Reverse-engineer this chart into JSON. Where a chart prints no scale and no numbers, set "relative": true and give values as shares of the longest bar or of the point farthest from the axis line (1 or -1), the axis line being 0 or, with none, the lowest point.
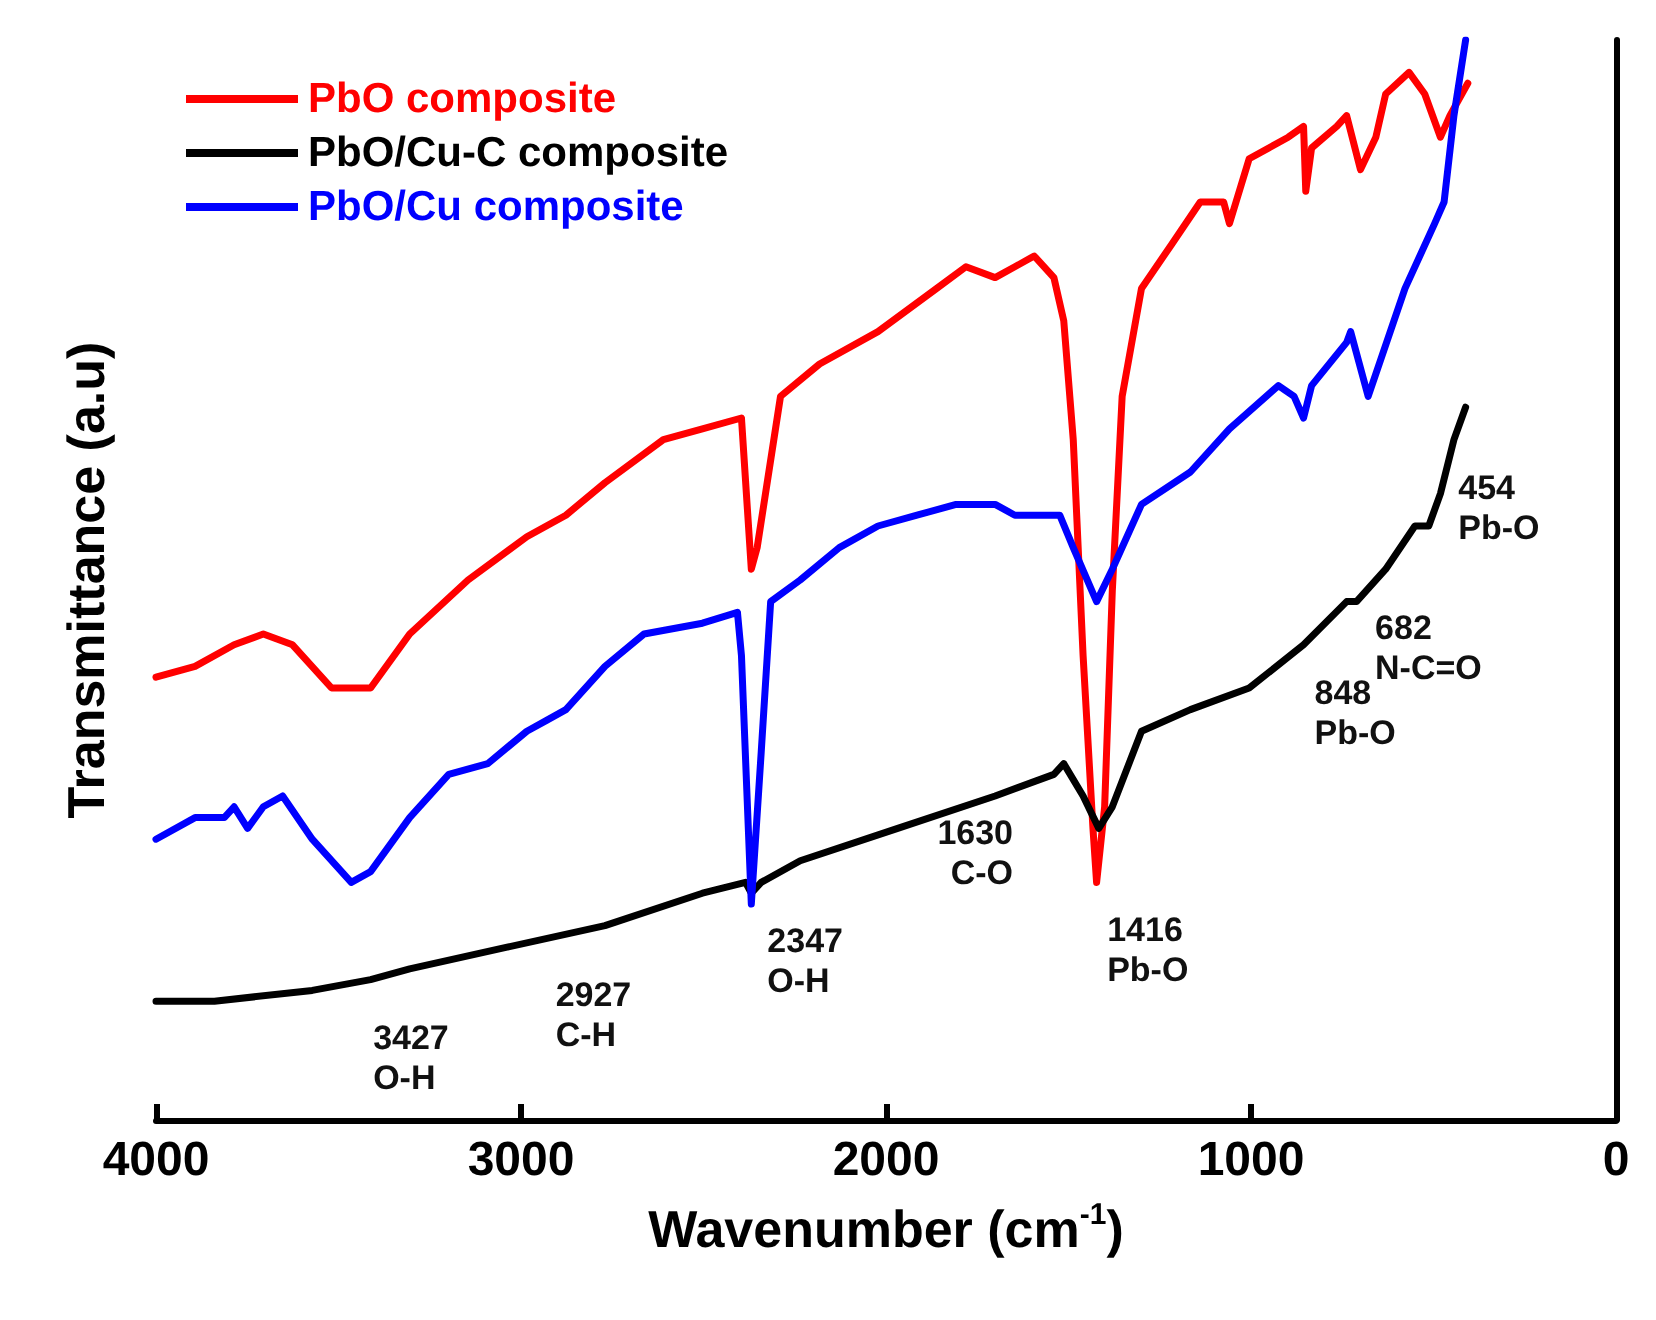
{
  "chart_data": {
    "type": "line",
    "relative": true,
    "xlabel": "Wavenumber (cm$^{-1}$)",
    "ylabel": "Transmittance (a.u)",
    "xlim": [
      4000,
      0
    ],
    "xticks": [
      4000,
      3000,
      2000,
      1000,
      0
    ],
    "legend": "top left",
    "grid": false,
    "marker": "none",
    "line_style": "solid",
    "series": [
      {
        "name": "PbO composite",
        "color": "#ff0000",
        "x": [
          4000,
          3893,
          3786,
          3706,
          3626,
          3519,
          3412,
          3305,
          3145,
          2984,
          2877,
          2770,
          2610,
          2503,
          2396,
          2369,
          2353,
          2289,
          2182,
          2022,
          1861,
          1781,
          1701,
          1647,
          1594,
          1540,
          1513,
          1487,
          1460,
          1433,
          1423,
          1401,
          1380,
          1353,
          1300,
          1219,
          1139,
          1075,
          1059,
          1005,
          898,
          856,
          850,
          834,
          765,
          738,
          700,
          658,
          631,
          567,
          524,
          481,
          455,
          406
        ],
        "values": [
          0.41,
          0.42,
          0.44,
          0.45,
          0.44,
          0.4,
          0.4,
          0.45,
          0.5,
          0.54,
          0.56,
          0.59,
          0.63,
          0.64,
          0.65,
          0.51,
          0.53,
          0.67,
          0.7,
          0.73,
          0.77,
          0.79,
          0.78,
          0.79,
          0.8,
          0.78,
          0.74,
          0.63,
          0.43,
          0.27,
          0.22,
          0.29,
          0.49,
          0.67,
          0.77,
          0.81,
          0.85,
          0.85,
          0.83,
          0.89,
          0.91,
          0.92,
          0.86,
          0.9,
          0.92,
          0.93,
          0.88,
          0.91,
          0.95,
          0.97,
          0.95,
          0.91,
          0.93,
          0.96
        ]
      },
      {
        "name": "PbO/Cu-C composite",
        "color": "#000000",
        "x": [
          4000,
          3840,
          3572,
          3412,
          3305,
          3038,
          2770,
          2503,
          2385,
          2369,
          2342,
          2235,
          1968,
          1701,
          1540,
          1513,
          1460,
          1417,
          1380,
          1300,
          1166,
          1005,
          856,
          738,
          711,
          631,
          551,
          513,
          481,
          444,
          412
        ],
        "values": [
          0.11,
          0.11,
          0.12,
          0.13,
          0.14,
          0.16,
          0.18,
          0.21,
          0.22,
          0.21,
          0.22,
          0.24,
          0.27,
          0.3,
          0.32,
          0.33,
          0.3,
          0.27,
          0.29,
          0.36,
          0.38,
          0.4,
          0.44,
          0.48,
          0.48,
          0.51,
          0.55,
          0.55,
          0.58,
          0.63,
          0.66
        ]
      },
      {
        "name": "PbO/Cu composite",
        "color": "#0000ff",
        "x": [
          4000,
          3893,
          3813,
          3786,
          3749,
          3706,
          3653,
          3572,
          3465,
          3412,
          3305,
          3198,
          3091,
          2984,
          2930,
          2877,
          2770,
          2663,
          2503,
          2407,
          2396,
          2369,
          2342,
          2316,
          2235,
          2128,
          2022,
          1915,
          1808,
          1701,
          1647,
          1620,
          1567,
          1524,
          1487,
          1423,
          1380,
          1300,
          1166,
          1059,
          925,
          882,
          856,
          834,
          738,
          727,
          679,
          578,
          497,
          471,
          444,
          412
        ],
        "values": [
          0.26,
          0.28,
          0.28,
          0.29,
          0.27,
          0.29,
          0.3,
          0.26,
          0.22,
          0.23,
          0.28,
          0.32,
          0.33,
          0.36,
          0.37,
          0.38,
          0.42,
          0.45,
          0.46,
          0.47,
          0.43,
          0.2,
          0.34,
          0.48,
          0.5,
          0.53,
          0.55,
          0.56,
          0.57,
          0.57,
          0.56,
          0.56,
          0.56,
          0.56,
          0.53,
          0.48,
          0.51,
          0.57,
          0.6,
          0.64,
          0.68,
          0.67,
          0.65,
          0.68,
          0.72,
          0.73,
          0.67,
          0.77,
          0.83,
          0.85,
          0.93,
          1.0
        ]
      }
    ],
    "annotations": [
      {
        "text": "3427\nO-H",
        "x": 3427,
        "y": 0.12
      },
      {
        "text": "2927\nC-H",
        "x": 2927,
        "y": 0.16
      },
      {
        "text": "2347\nO-H",
        "x": 2347,
        "y": 0.21
      },
      {
        "text": "1630\nC-O",
        "x": 1630,
        "y": 0.31
      },
      {
        "text": "1416\nPb-O",
        "x": 1416,
        "y": 0.22
      },
      {
        "text": "848\nPb-O",
        "x": 848,
        "y": 0.44
      },
      {
        "text": "682\nN-C=O",
        "x": 682,
        "y": 0.5
      },
      {
        "text": "454\nPb-O",
        "x": 454,
        "y": 0.63
      }
    ]
  }
}
